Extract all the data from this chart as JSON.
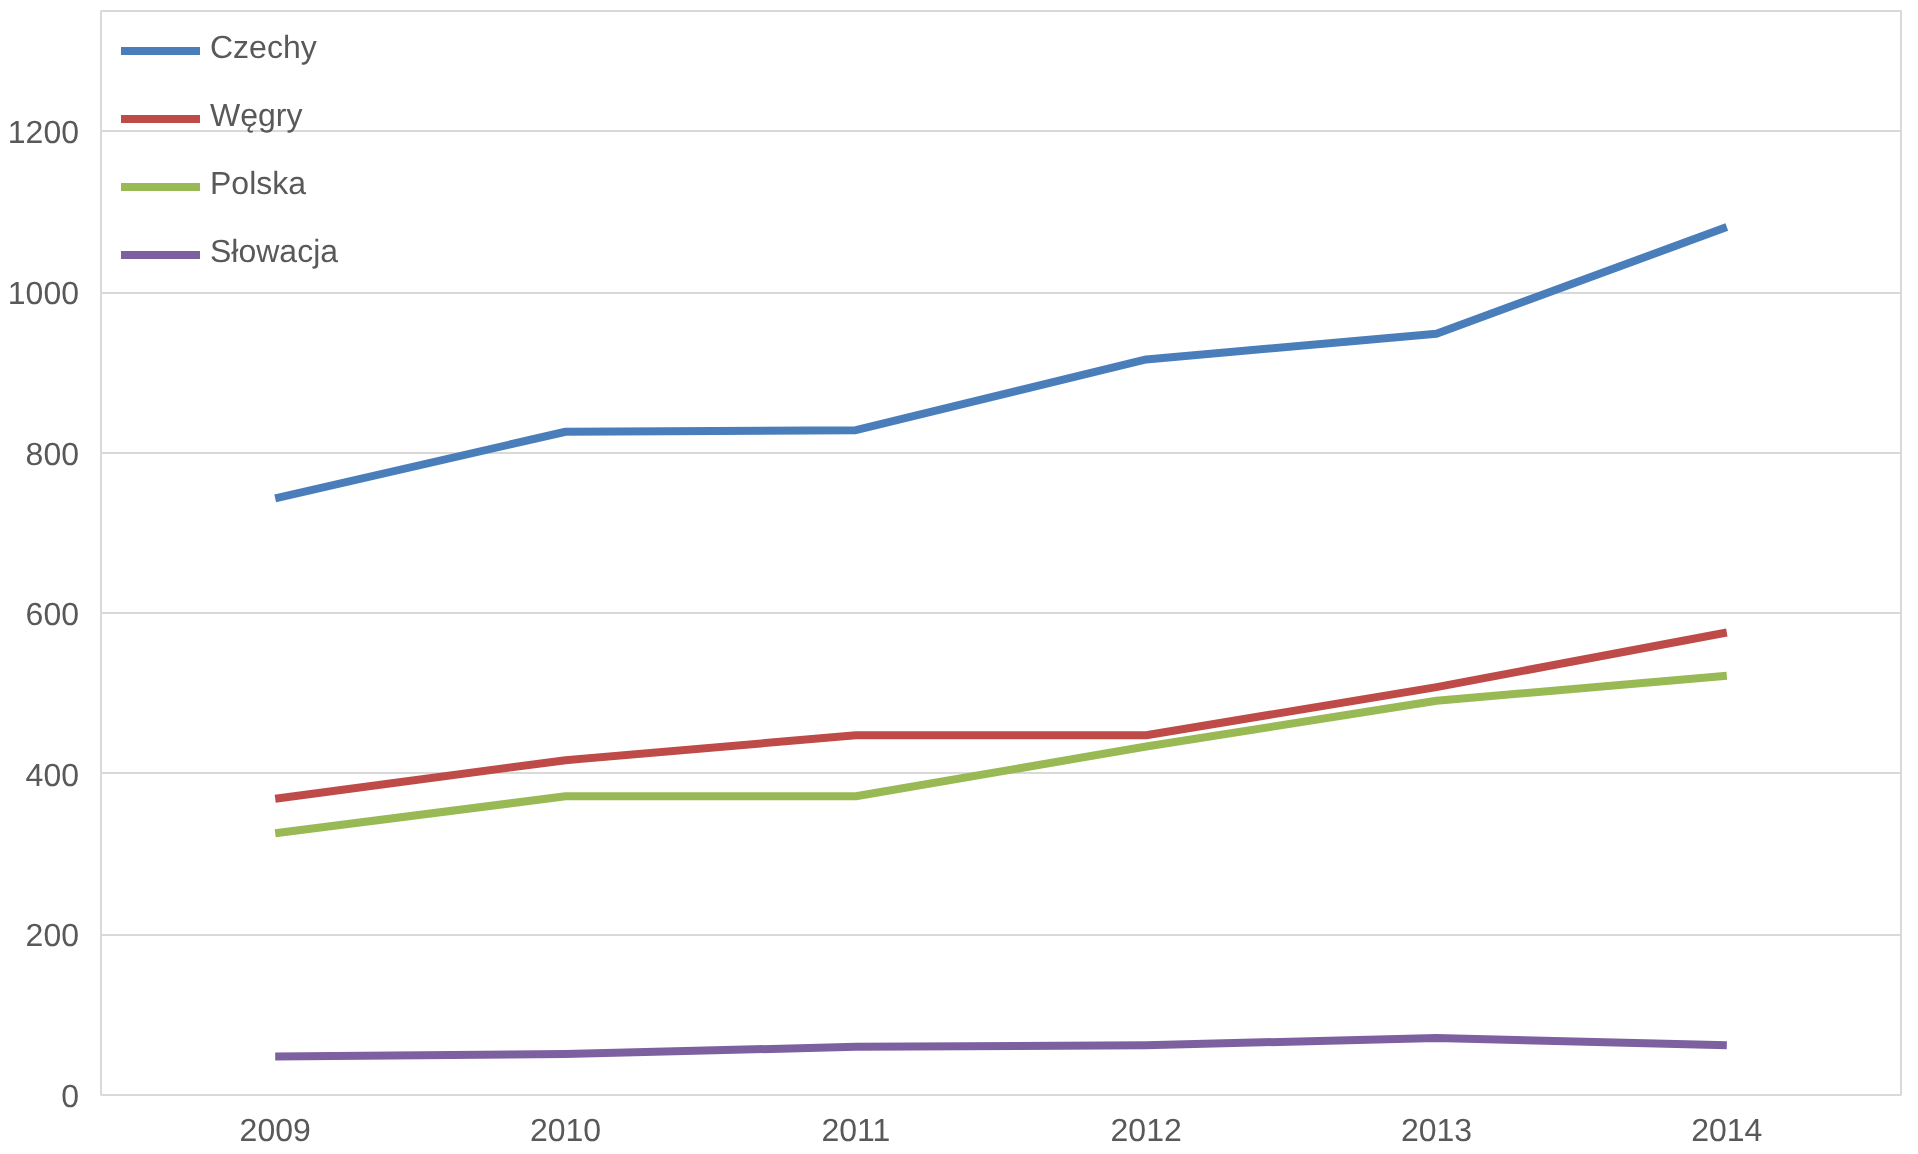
{
  "chart_data": {
    "type": "line",
    "categories": [
      "2009",
      "2010",
      "2011",
      "2012",
      "2013",
      "2014"
    ],
    "series": [
      {
        "name": "Czechy",
        "color": "#4a7ebb",
        "values": [
          743,
          826,
          828,
          916,
          948,
          1081
        ]
      },
      {
        "name": "Węgry",
        "color": "#be4b48",
        "values": [
          369,
          417,
          448,
          448,
          508,
          576
        ]
      },
      {
        "name": "Polska",
        "color": "#98b954",
        "values": [
          326,
          372,
          372,
          434,
          491,
          522
        ]
      },
      {
        "name": "Słowacja",
        "color": "#7d60a0",
        "values": [
          48,
          51,
          60,
          62,
          71,
          62
        ]
      }
    ],
    "ylim": [
      0,
      1350
    ],
    "yticks": [
      0,
      200,
      400,
      600,
      800,
      1000,
      1200
    ],
    "grid": "y",
    "legend": "top left",
    "marker": "none",
    "line_style": "solid"
  }
}
